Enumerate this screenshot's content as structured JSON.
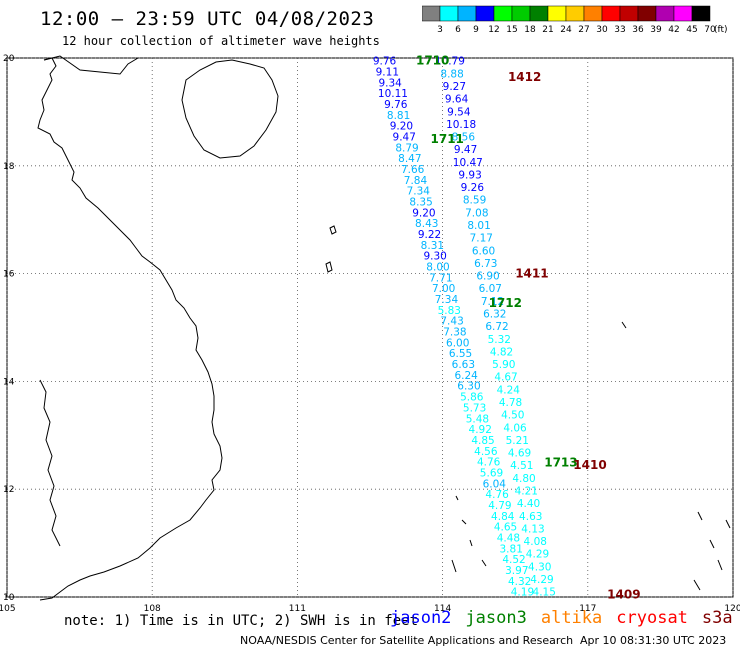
{
  "title": "12:00 – 23:59 UTC 04/08/2023",
  "subtitle": "12 hour collection of altimeter wave heights",
  "colorbar": {
    "unit": "(ft)",
    "bins": [
      {
        "label": "3",
        "color": "#808080"
      },
      {
        "label": "6",
        "color": "#00ffff"
      },
      {
        "label": "9",
        "color": "#00b4ff"
      },
      {
        "label": "12",
        "color": "#0000ff"
      },
      {
        "label": "15",
        "color": "#00ff00"
      },
      {
        "label": "18",
        "color": "#00cc00"
      },
      {
        "label": "21",
        "color": "#008000"
      },
      {
        "label": "24",
        "color": "#ffff00"
      },
      {
        "label": "27",
        "color": "#ffcc00"
      },
      {
        "label": "30",
        "color": "#ff8000"
      },
      {
        "label": "33",
        "color": "#ff0000"
      },
      {
        "label": "36",
        "color": "#c00000"
      },
      {
        "label": "39",
        "color": "#800000"
      },
      {
        "label": "42",
        "color": "#b000b0"
      },
      {
        "label": "45",
        "color": "#ff00ff"
      },
      {
        "label": "70",
        "color": "#000000"
      }
    ]
  },
  "map": {
    "lon_range": [
      105,
      120
    ],
    "lat_range": [
      10,
      20
    ],
    "lon_ticks": [
      "105",
      "108",
      "111",
      "114",
      "117",
      "120"
    ],
    "lat_ticks": [
      "20",
      "18",
      "16",
      "14",
      "12",
      "10"
    ]
  },
  "passes": [
    {
      "label": "1710",
      "color": "#008000",
      "lon": 113.45,
      "lat": 19.95
    },
    {
      "label": "1711",
      "color": "#008000",
      "lon": 113.75,
      "lat": 18.5
    },
    {
      "label": "1712",
      "color": "#008000",
      "lon": 114.95,
      "lat": 15.45
    },
    {
      "label": "1713",
      "color": "#008000",
      "lon": 116.1,
      "lat": 12.5
    },
    {
      "label": "1412",
      "color": "#800000",
      "lon": 115.35,
      "lat": 19.65
    },
    {
      "label": "1411",
      "color": "#800000",
      "lon": 115.5,
      "lat": 16.0
    },
    {
      "label": "1410",
      "color": "#800000",
      "lon": 116.7,
      "lat": 12.45
    },
    {
      "label": "1409",
      "color": "#800000",
      "lon": 117.4,
      "lat": 10.05
    }
  ],
  "tracks": [
    {
      "name": "west",
      "start": [
        112.8,
        19.95
      ],
      "end": [
        115.65,
        10.1
      ],
      "values": [
        "9.76",
        "9.11",
        "9.34",
        "10.11",
        "9.76",
        "8.81",
        "9.20",
        "9.47",
        "8.79",
        "8.47",
        "7.66",
        "7.84",
        "7.34",
        "8.35",
        "9.20",
        "8.43",
        "9.22",
        "8.31",
        "9.30",
        "8.00",
        "7.71",
        "7.00",
        "7.34",
        "5.83",
        "7.43",
        "7.38",
        "6.00",
        "6.55",
        "6.63",
        "6.24",
        "6.30",
        "5.86",
        "5.73",
        "5.48",
        "4.92",
        "4.85",
        "4.56",
        "4.76",
        "5.69",
        "6.04",
        "4.76",
        "4.79",
        "4.84",
        "4.65",
        "4.48",
        "3.81",
        "4.52",
        "3.97",
        "4.32",
        "4.19"
      ]
    },
    {
      "name": "east",
      "start": [
        114.15,
        19.95
      ],
      "end": [
        116.1,
        10.1
      ],
      "values": [
        "10.79",
        "8.88",
        "9.27",
        "9.64",
        "9.54",
        "10.18",
        "8.56",
        "9.47",
        "10.47",
        "9.93",
        "9.26",
        "8.59",
        "7.08",
        "8.01",
        "7.17",
        "6.60",
        "6.73",
        "6.90",
        "6.07",
        "7.12",
        "6.32",
        "6.72",
        "5.32",
        "4.82",
        "5.90",
        "4.67",
        "4.24",
        "4.78",
        "4.50",
        "4.06",
        "5.21",
        "4.69",
        "4.51",
        "4.80",
        "4.21",
        "4.40",
        "4.63",
        "4.13",
        "4.08",
        "4.29",
        "4.30",
        "4.29",
        "4.15"
      ]
    }
  ],
  "note": "note: 1) Time is in UTC; 2) SWH is in feet",
  "legend": [
    {
      "label": "jason2",
      "color": "#0000ff"
    },
    {
      "label": "jason3",
      "color": "#008000"
    },
    {
      "label": "altika",
      "color": "#ff8000"
    },
    {
      "label": "cryosat",
      "color": "#ff0000"
    },
    {
      "label": "s3a",
      "color": "#800000"
    }
  ],
  "footer": {
    "org": "NOAA/NESDIS Center for Satellite Applications and Research",
    "date": "Apr 10 08:31:30 UTC 2023"
  }
}
